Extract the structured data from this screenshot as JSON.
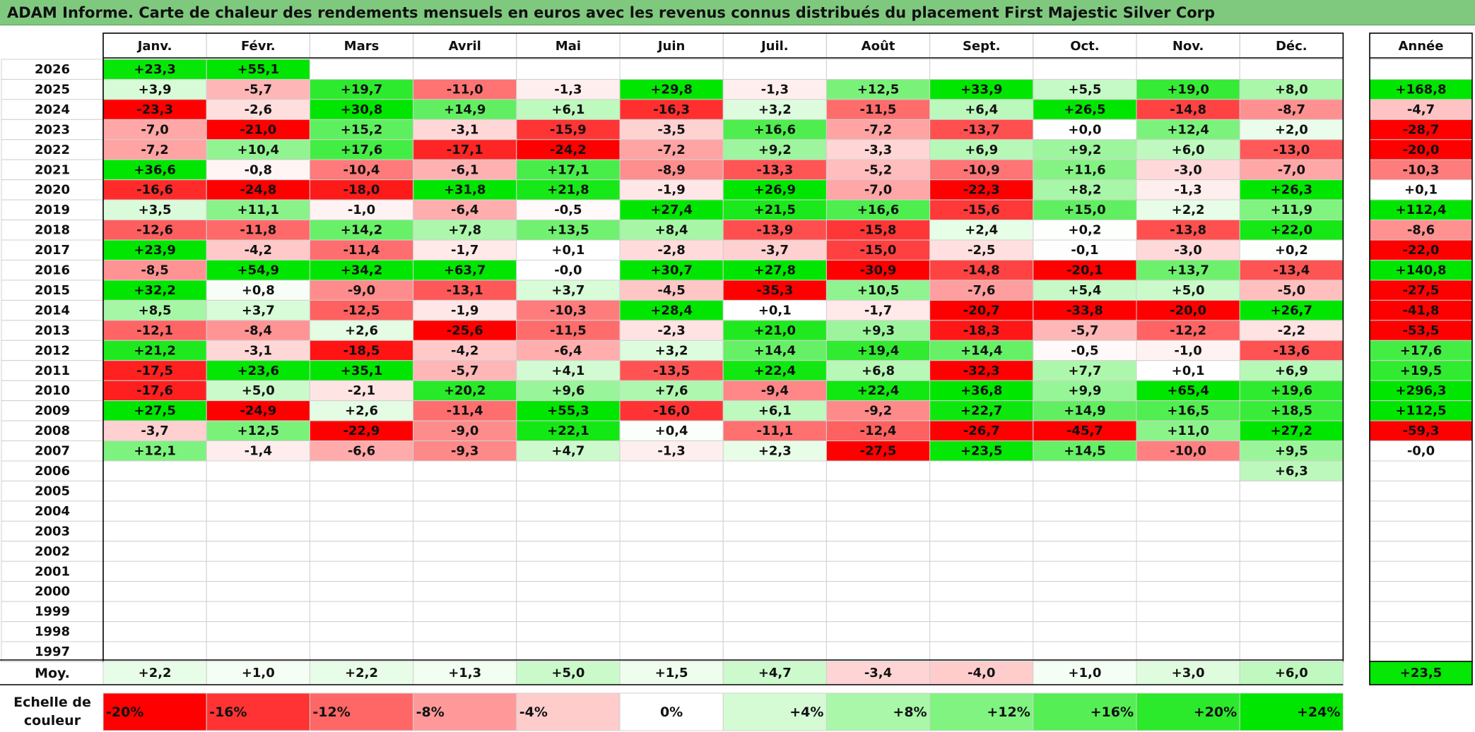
{
  "title": "ADAM Informe. Carte de chaleur des rendements mensuels en euros avec les revenus connus distribués du placement First Majestic Silver Corp",
  "chart_data": {
    "type": "heatmap",
    "months": [
      "Janv.",
      "Févr.",
      "Mars",
      "Avril",
      "Mai",
      "Juin",
      "Juil.",
      "Août",
      "Sept.",
      "Oct.",
      "Nov.",
      "Déc."
    ],
    "annual_label": "Année",
    "average_label": "Moy.",
    "scale_label_line1": "Echelle de",
    "scale_label_line2": "couleur",
    "rows": [
      {
        "year": "2026",
        "m": [
          "+23,3",
          "+55,1",
          "",
          "",
          "",
          "",
          "",
          "",
          "",
          "",
          "",
          ""
        ],
        "annual": ""
      },
      {
        "year": "2025",
        "m": [
          "+3,9",
          "-5,7",
          "+19,7",
          "-11,0",
          "-1,3",
          "+29,8",
          "-1,3",
          "+12,5",
          "+33,9",
          "+5,5",
          "+19,0",
          "+8,0"
        ],
        "annual": "+168,8"
      },
      {
        "year": "2024",
        "m": [
          "-23,3",
          "-2,6",
          "+30,8",
          "+14,9",
          "+6,1",
          "-16,3",
          "+3,2",
          "-11,5",
          "+6,4",
          "+26,5",
          "-14,8",
          "-8,7"
        ],
        "annual": "-4,7"
      },
      {
        "year": "2023",
        "m": [
          "-7,0",
          "-21,0",
          "+15,2",
          "-3,1",
          "-15,9",
          "-3,5",
          "+16,6",
          "-7,2",
          "-13,7",
          "+0,0",
          "+12,4",
          "+2,0"
        ],
        "annual": "-28,7"
      },
      {
        "year": "2022",
        "m": [
          "-7,2",
          "+10,4",
          "+17,6",
          "-17,1",
          "-24,2",
          "-7,2",
          "+9,2",
          "-3,3",
          "+6,9",
          "+9,2",
          "+6,0",
          "-13,0"
        ],
        "annual": "-20,0"
      },
      {
        "year": "2021",
        "m": [
          "+36,6",
          "-0,8",
          "-10,4",
          "-6,1",
          "+17,1",
          "-8,9",
          "-13,3",
          "-5,2",
          "-10,9",
          "+11,6",
          "-3,0",
          "-7,0"
        ],
        "annual": "-10,3"
      },
      {
        "year": "2020",
        "m": [
          "-16,6",
          "-24,8",
          "-18,0",
          "+31,8",
          "+21,8",
          "-1,9",
          "+26,9",
          "-7,0",
          "-22,3",
          "+8,2",
          "-1,3",
          "+26,3"
        ],
        "annual": "+0,1"
      },
      {
        "year": "2019",
        "m": [
          "+3,5",
          "+11,1",
          "-1,0",
          "-6,4",
          "-0,5",
          "+27,4",
          "+21,5",
          "+16,6",
          "-15,6",
          "+15,0",
          "+2,2",
          "+11,9"
        ],
        "annual": "+112,4"
      },
      {
        "year": "2018",
        "m": [
          "-12,6",
          "-11,8",
          "+14,2",
          "+7,8",
          "+13,5",
          "+8,4",
          "-13,9",
          "-15,8",
          "+2,4",
          "+0,2",
          "-13,8",
          "+22,0"
        ],
        "annual": "-8,6"
      },
      {
        "year": "2017",
        "m": [
          "+23,9",
          "-4,2",
          "-11,4",
          "-1,7",
          "+0,1",
          "-2,8",
          "-3,7",
          "-15,0",
          "-2,5",
          "-0,1",
          "-3,0",
          "+0,2"
        ],
        "annual": "-22,0"
      },
      {
        "year": "2016",
        "m": [
          "-8,5",
          "+54,9",
          "+34,2",
          "+63,7",
          "-0,0",
          "+30,7",
          "+27,8",
          "-30,9",
          "-14,8",
          "-20,1",
          "+13,7",
          "-13,4"
        ],
        "annual": "+140,8"
      },
      {
        "year": "2015",
        "m": [
          "+32,2",
          "+0,8",
          "-9,0",
          "-13,1",
          "+3,7",
          "-4,5",
          "-35,3",
          "+10,5",
          "-7,6",
          "+5,4",
          "+5,0",
          "-5,0"
        ],
        "annual": "-27,5"
      },
      {
        "year": "2014",
        "m": [
          "+8,5",
          "+3,7",
          "-12,5",
          "-1,9",
          "-10,3",
          "+28,4",
          "+0,1",
          "-1,7",
          "-20,7",
          "-33,8",
          "-20,0",
          "+26,7"
        ],
        "annual": "-41,8"
      },
      {
        "year": "2013",
        "m": [
          "-12,1",
          "-8,4",
          "+2,6",
          "-25,6",
          "-11,5",
          "-2,3",
          "+21,0",
          "+9,3",
          "-18,3",
          "-5,7",
          "-12,2",
          "-2,2"
        ],
        "annual": "-53,5"
      },
      {
        "year": "2012",
        "m": [
          "+21,2",
          "-3,1",
          "-18,5",
          "-4,2",
          "-6,4",
          "+3,2",
          "+14,4",
          "+19,4",
          "+14,4",
          "-0,5",
          "-1,0",
          "-13,6"
        ],
        "annual": "+17,6"
      },
      {
        "year": "2011",
        "m": [
          "-17,5",
          "+23,6",
          "+35,1",
          "-5,7",
          "+4,1",
          "-13,5",
          "+22,4",
          "+6,8",
          "-32,3",
          "+7,7",
          "+0,1",
          "+6,9"
        ],
        "annual": "+19,5"
      },
      {
        "year": "2010",
        "m": [
          "-17,6",
          "+5,0",
          "-2,1",
          "+20,2",
          "+9,6",
          "+7,6",
          "-9,4",
          "+22,4",
          "+36,8",
          "+9,9",
          "+65,4",
          "+19,6"
        ],
        "annual": "+296,3"
      },
      {
        "year": "2009",
        "m": [
          "+27,5",
          "-24,9",
          "+2,6",
          "-11,4",
          "+55,3",
          "-16,0",
          "+6,1",
          "-9,2",
          "+22,7",
          "+14,9",
          "+16,5",
          "+18,5"
        ],
        "annual": "+112,5"
      },
      {
        "year": "2008",
        "m": [
          "-3,7",
          "+12,5",
          "-22,9",
          "-9,0",
          "+22,1",
          "+0,4",
          "-11,1",
          "-12,4",
          "-26,7",
          "-45,7",
          "+11,0",
          "+27,2"
        ],
        "annual": "-59,3"
      },
      {
        "year": "2007",
        "m": [
          "+12,1",
          "-1,4",
          "-6,6",
          "-9,3",
          "+4,7",
          "-1,3",
          "+2,3",
          "-27,5",
          "+23,5",
          "+14,5",
          "-10,0",
          "+9,5"
        ],
        "annual": "-0,0"
      },
      {
        "year": "2006",
        "m": [
          "",
          "",
          "",
          "",
          "",
          "",
          "",
          "",
          "",
          "",
          "",
          "+6,3"
        ],
        "annual": ""
      },
      {
        "year": "2005",
        "m": [
          "",
          "",
          "",
          "",
          "",
          "",
          "",
          "",
          "",
          "",
          "",
          ""
        ],
        "annual": ""
      },
      {
        "year": "2004",
        "m": [
          "",
          "",
          "",
          "",
          "",
          "",
          "",
          "",
          "",
          "",
          "",
          ""
        ],
        "annual": ""
      },
      {
        "year": "2003",
        "m": [
          "",
          "",
          "",
          "",
          "",
          "",
          "",
          "",
          "",
          "",
          "",
          ""
        ],
        "annual": ""
      },
      {
        "year": "2002",
        "m": [
          "",
          "",
          "",
          "",
          "",
          "",
          "",
          "",
          "",
          "",
          "",
          ""
        ],
        "annual": ""
      },
      {
        "year": "2001",
        "m": [
          "",
          "",
          "",
          "",
          "",
          "",
          "",
          "",
          "",
          "",
          "",
          ""
        ],
        "annual": ""
      },
      {
        "year": "2000",
        "m": [
          "",
          "",
          "",
          "",
          "",
          "",
          "",
          "",
          "",
          "",
          "",
          ""
        ],
        "annual": ""
      },
      {
        "year": "1999",
        "m": [
          "",
          "",
          "",
          "",
          "",
          "",
          "",
          "",
          "",
          "",
          "",
          ""
        ],
        "annual": ""
      },
      {
        "year": "1998",
        "m": [
          "",
          "",
          "",
          "",
          "",
          "",
          "",
          "",
          "",
          "",
          "",
          ""
        ],
        "annual": ""
      },
      {
        "year": "1997",
        "m": [
          "",
          "",
          "",
          "",
          "",
          "",
          "",
          "",
          "",
          "",
          "",
          ""
        ],
        "annual": ""
      }
    ],
    "averages": [
      "+2,2",
      "+1,0",
      "+2,2",
      "+1,3",
      "+5,0",
      "+1,5",
      "+4,7",
      "-3,4",
      "-4,0",
      "+1,0",
      "+3,0",
      "+6,0"
    ],
    "average_annual": "+23,5",
    "scale": [
      "-20%",
      "-16%",
      "-12%",
      "-8%",
      "-4%",
      "0%",
      "+4%",
      "+8%",
      "+12%",
      "+16%",
      "+20%",
      "+24%"
    ],
    "color_range": {
      "min": -20,
      "max": 24
    },
    "colors": {
      "negative_max": "#ff0000",
      "neutral": "#ffffff",
      "positive_max": "#00e600",
      "title_bar": "#7fc97f"
    }
  }
}
